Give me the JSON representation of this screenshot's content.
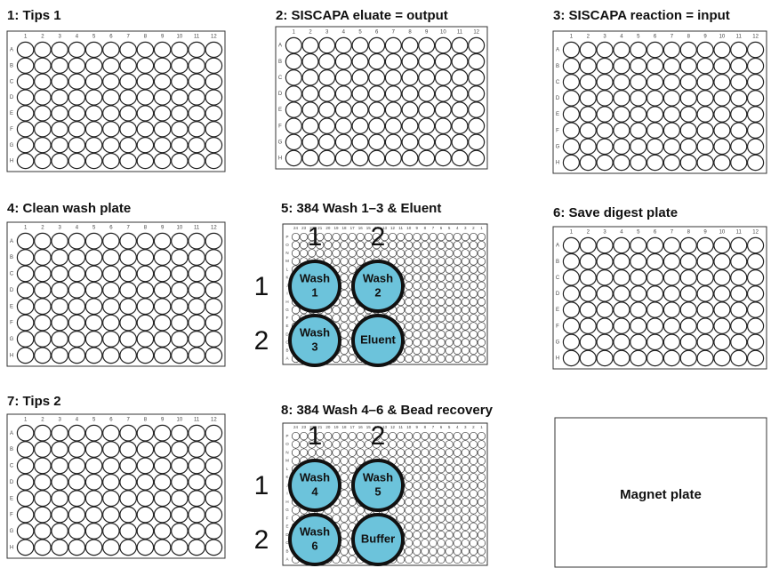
{
  "plates": [
    {
      "title": "1: Tips 1"
    },
    {
      "title": "2: SISCAPA eluate = output"
    },
    {
      "title": "3: SISCAPA reaction = input"
    },
    {
      "title": "4: Clean wash plate"
    },
    {
      "title": "6: Save digest plate"
    },
    {
      "title": "7: Tips 2"
    }
  ],
  "columns96": [
    "1",
    "2",
    "3",
    "4",
    "5",
    "6",
    "7",
    "8",
    "9",
    "10",
    "11",
    "12"
  ],
  "rows96": [
    "A",
    "B",
    "C",
    "D",
    "E",
    "F",
    "G",
    "H"
  ],
  "columns384": [
    "24",
    "23",
    "22",
    "21",
    "20",
    "19",
    "18",
    "17",
    "16",
    "15",
    "14",
    "13",
    "12",
    "11",
    "10",
    "9",
    "8",
    "7",
    "6",
    "5",
    "4",
    "3",
    "2",
    "1"
  ],
  "rows384": [
    "P",
    "O",
    "N",
    "M",
    "L",
    "K",
    "J",
    "I",
    "H",
    "G",
    "F",
    "E",
    "D",
    "C",
    "B",
    "A"
  ],
  "wash_plates": [
    {
      "title": "5: 384 Wash 1–3 & Eluent",
      "column_labels": [
        "1",
        "2"
      ],
      "row_labels": [
        "1",
        "2"
      ],
      "spots": [
        [
          "Wash",
          "1"
        ],
        [
          "Wash",
          "2"
        ],
        [
          "Wash",
          "3"
        ],
        [
          "Eluent"
        ]
      ]
    },
    {
      "title": "8: 384 Wash 4–6 & Bead recovery",
      "column_labels": [
        "1",
        "2"
      ],
      "row_labels": [
        "1",
        "2"
      ],
      "spots": [
        [
          "Wash",
          "4"
        ],
        [
          "Wash",
          "5"
        ],
        [
          "Wash",
          "6"
        ],
        [
          "Buffer"
        ]
      ]
    }
  ],
  "magnet_plate": {
    "label": "Magnet plate"
  }
}
